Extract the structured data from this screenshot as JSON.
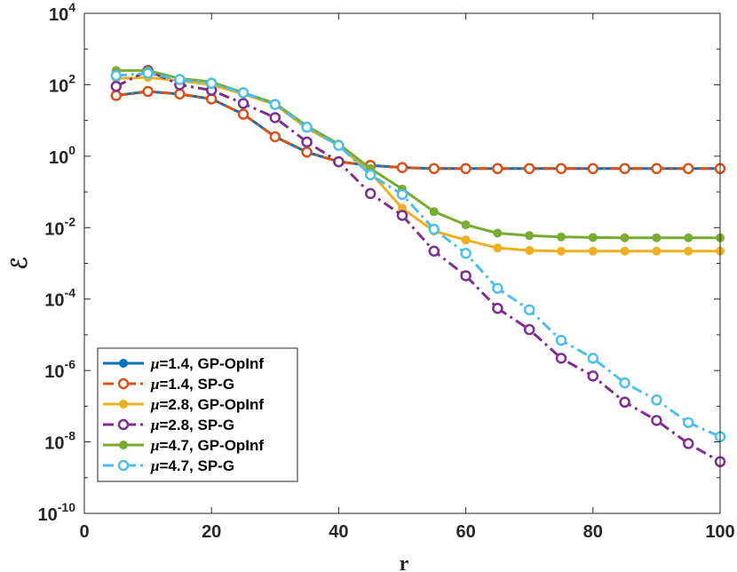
{
  "chart_data": {
    "type": "line",
    "title": "",
    "xlabel": "r",
    "ylabel": "ℰ",
    "xlim": [
      0,
      100
    ],
    "ylim_log10": [
      -10,
      4
    ],
    "yscale": "log",
    "grid": false,
    "legend_position": "bottom-left",
    "x_ticks": [
      "0",
      "20",
      "40",
      "60",
      "80",
      "100"
    ],
    "y_ticks": [
      {
        "base": "10",
        "exp": "-10"
      },
      {
        "base": "10",
        "exp": "-8"
      },
      {
        "base": "10",
        "exp": "-6"
      },
      {
        "base": "10",
        "exp": "-4"
      },
      {
        "base": "10",
        "exp": "-2"
      },
      {
        "base": "10",
        "exp": "0"
      },
      {
        "base": "10",
        "exp": "2"
      },
      {
        "base": "10",
        "exp": "4"
      }
    ],
    "x": [
      5,
      10,
      15,
      20,
      25,
      30,
      35,
      40,
      45,
      50,
      55,
      60,
      65,
      70,
      75,
      80,
      85,
      90,
      95,
      100
    ],
    "series": [
      {
        "name": "GP-OpInf",
        "mu": "μ",
        "mu_value": "=1.4,",
        "color": "#0072BD",
        "dash": "solid",
        "marker": "filled",
        "values": [
          50,
          65,
          55,
          40,
          15,
          3.5,
          1.3,
          0.7,
          0.55,
          0.48,
          0.45,
          0.45,
          0.45,
          0.45,
          0.45,
          0.45,
          0.45,
          0.45,
          0.45,
          0.45
        ]
      },
      {
        "name": "SP-G",
        "mu": "μ",
        "mu_value": "=1.4,",
        "color": "#D95319",
        "dash": "dashdot",
        "marker": "open",
        "values": [
          50,
          65,
          55,
          40,
          15,
          3.5,
          1.3,
          0.7,
          0.55,
          0.48,
          0.45,
          0.45,
          0.45,
          0.45,
          0.45,
          0.45,
          0.45,
          0.45,
          0.45,
          0.45
        ]
      },
      {
        "name": "GP-OpInf",
        "mu": "μ",
        "mu_value": "=2.8,",
        "color": "#EDB120",
        "dash": "solid",
        "marker": "filled",
        "values": [
          150,
          160,
          130,
          100,
          55,
          28,
          6,
          2,
          0.35,
          0.035,
          0.008,
          0.0045,
          0.0027,
          0.0023,
          0.0022,
          0.0022,
          0.0022,
          0.0022,
          0.0022,
          0.0022
        ]
      },
      {
        "name": "SP-G",
        "mu": "μ",
        "mu_value": "=2.8,",
        "color": "#7E2F8E",
        "dash": "dashdot",
        "marker": "open",
        "values": [
          90,
          250,
          100,
          70,
          30,
          12,
          2.5,
          0.7,
          0.09,
          0.022,
          0.0022,
          0.00045,
          5.5e-05,
          1.4e-05,
          2.2e-06,
          7e-07,
          1.3e-07,
          4e-08,
          9e-09,
          2.8e-09
        ]
      },
      {
        "name": "GP-OpInf",
        "mu": "μ",
        "mu_value": "=4.7,",
        "color": "#77AC30",
        "dash": "solid",
        "marker": "filled",
        "values": [
          250,
          250,
          150,
          120,
          60,
          30,
          7,
          2.2,
          0.45,
          0.12,
          0.028,
          0.012,
          0.007,
          0.006,
          0.0055,
          0.0053,
          0.0052,
          0.0052,
          0.0052,
          0.0052
        ]
      },
      {
        "name": "SP-G",
        "mu": "μ",
        "mu_value": "=4.7,",
        "color": "#4DBEEE",
        "dash": "dashdot",
        "marker": "open",
        "values": [
          180,
          210,
          140,
          110,
          60,
          28,
          6.5,
          2,
          0.3,
          0.085,
          0.009,
          0.0019,
          0.0002,
          5e-05,
          7e-06,
          2.2e-06,
          4.5e-07,
          1.5e-07,
          3.5e-08,
          1.4e-08
        ]
      }
    ]
  }
}
